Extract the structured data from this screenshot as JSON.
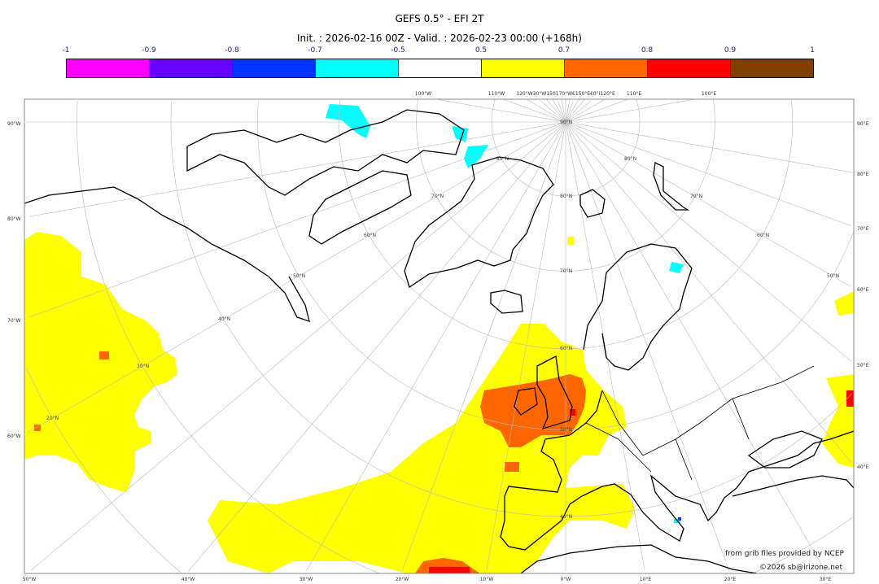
{
  "title": "GEFS 0.5° - EFI 2T",
  "subtitle": "Init. : 2026-02-16 00Z - Valid. : 2026-02-23 00:00 (+168h)",
  "colorbar": {
    "ticks": [
      "-1",
      "-0.9",
      "-0.8",
      "-0.7",
      "-0.5",
      "0.5",
      "0.7",
      "0.8",
      "0.9",
      "1"
    ],
    "colors": [
      "#ff00ff",
      "#6600ff",
      "#0033ff",
      "#00ffff",
      "#ffffff",
      "#ffff00",
      "#ff6600",
      "#ff0000",
      "#804000"
    ]
  },
  "map": {
    "projection": "polar stereographic",
    "left_labels": [
      "90°W",
      "80°W",
      "70°W",
      "60°W"
    ],
    "right_labels": [
      "90°E",
      "80°E",
      "70°E",
      "60°E",
      "50°E",
      "40°E"
    ],
    "bottom_labels": [
      "50°W",
      "40°W",
      "30°W",
      "20°W",
      "10°W",
      "0°W",
      "10°E",
      "20°E",
      "30°E"
    ],
    "top_labels": [
      "100°W",
      "110°W",
      "120°W30°W150170°W€150°E€0°I120°E",
      "110°E",
      "100°E"
    ],
    "lat_labels": [
      "90°N",
      "80°N",
      "80°N",
      "80°N",
      "70°N",
      "70°N",
      "70°N",
      "60°N",
      "60°N",
      "60°N",
      "50°N",
      "50°N",
      "50°N",
      "40°N",
      "40°N",
      "30°N",
      "20°N"
    ],
    "legend_colors": {
      "yellow": "#ffff00",
      "orange": "#ff6600",
      "red": "#ff0000",
      "cyan": "#00ffff",
      "blue": "#0033ff"
    }
  },
  "credits": {
    "line1": "from grib files provided by NCEP",
    "line2": "©2026 sb@irizone.net"
  }
}
